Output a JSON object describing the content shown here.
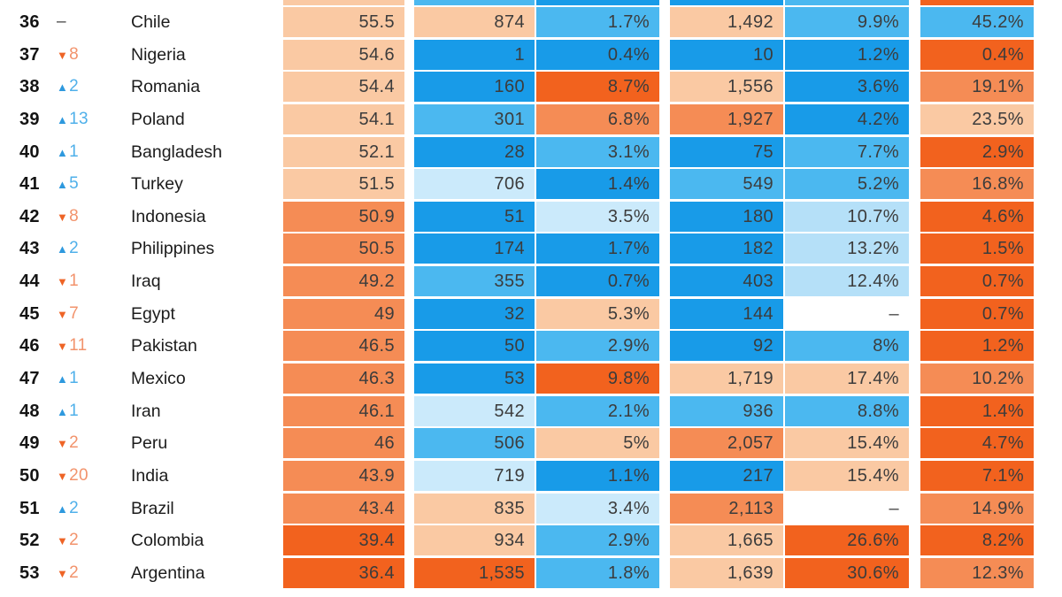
{
  "meta": {
    "glyphs": {
      "up": "▲",
      "down": "▼"
    }
  },
  "colors": {
    "background": "#ffffff",
    "cell_text": "#3c3c3c",
    "rank_text": "#141414",
    "country_text": "#1c1c1c",
    "dash_text": "#4a4a4a",
    "up_arrow": "#2e99de",
    "up_number": "#4fb0ea",
    "down_arrow": "#ee6426",
    "down_number": "#f2936c",
    "palette": {
      "o1": "#f2621e",
      "o2": "#f58c55",
      "o3": "#fac9a3",
      "b1": "#189be8",
      "b2": "#4bb8f0",
      "b3": "#b5e0f8",
      "b4": "#cbeafb",
      "w": "#ffffff"
    }
  },
  "chart_data": {
    "type": "heatmap",
    "description_visible_headers": "",
    "partial_top_row": {
      "colors": [
        "o3",
        "b2",
        "b1",
        "b1",
        "b2",
        "o1"
      ]
    },
    "rows": [
      {
        "rank": "36",
        "change_dir": "none",
        "change": "–",
        "country": "Chile",
        "values": [
          {
            "v": "55.5",
            "c": "o3"
          },
          {
            "v": "874",
            "c": "o3"
          },
          {
            "v": "1.7%",
            "c": "b2"
          },
          {
            "v": "1,492",
            "c": "o3"
          },
          {
            "v": "9.9%",
            "c": "b2"
          },
          {
            "v": "45.2%",
            "c": "b2"
          }
        ]
      },
      {
        "rank": "37",
        "change_dir": "down",
        "change": "8",
        "country": "Nigeria",
        "values": [
          {
            "v": "54.6",
            "c": "o3"
          },
          {
            "v": "1",
            "c": "b1"
          },
          {
            "v": "0.4%",
            "c": "b1"
          },
          {
            "v": "10",
            "c": "b1"
          },
          {
            "v": "1.2%",
            "c": "b1"
          },
          {
            "v": "0.4%",
            "c": "o1"
          }
        ]
      },
      {
        "rank": "38",
        "change_dir": "up",
        "change": "2",
        "country": "Romania",
        "values": [
          {
            "v": "54.4",
            "c": "o3"
          },
          {
            "v": "160",
            "c": "b1"
          },
          {
            "v": "8.7%",
            "c": "o1"
          },
          {
            "v": "1,556",
            "c": "o3"
          },
          {
            "v": "3.6%",
            "c": "b1"
          },
          {
            "v": "19.1%",
            "c": "o2"
          }
        ]
      },
      {
        "rank": "39",
        "change_dir": "up",
        "change": "13",
        "country": "Poland",
        "values": [
          {
            "v": "54.1",
            "c": "o3"
          },
          {
            "v": "301",
            "c": "b2"
          },
          {
            "v": "6.8%",
            "c": "o2"
          },
          {
            "v": "1,927",
            "c": "o2"
          },
          {
            "v": "4.2%",
            "c": "b1"
          },
          {
            "v": "23.5%",
            "c": "o3"
          }
        ]
      },
      {
        "rank": "40",
        "change_dir": "up",
        "change": "1",
        "country": "Bangladesh",
        "values": [
          {
            "v": "52.1",
            "c": "o3"
          },
          {
            "v": "28",
            "c": "b1"
          },
          {
            "v": "3.1%",
            "c": "b2"
          },
          {
            "v": "75",
            "c": "b1"
          },
          {
            "v": "7.7%",
            "c": "b2"
          },
          {
            "v": "2.9%",
            "c": "o1"
          }
        ]
      },
      {
        "rank": "41",
        "change_dir": "up",
        "change": "5",
        "country": "Turkey",
        "values": [
          {
            "v": "51.5",
            "c": "o3"
          },
          {
            "v": "706",
            "c": "b4"
          },
          {
            "v": "1.4%",
            "c": "b1"
          },
          {
            "v": "549",
            "c": "b2"
          },
          {
            "v": "5.2%",
            "c": "b2"
          },
          {
            "v": "16.8%",
            "c": "o2"
          }
        ]
      },
      {
        "rank": "42",
        "change_dir": "down",
        "change": "8",
        "country": "Indonesia",
        "values": [
          {
            "v": "50.9",
            "c": "o2"
          },
          {
            "v": "51",
            "c": "b1"
          },
          {
            "v": "3.5%",
            "c": "b4"
          },
          {
            "v": "180",
            "c": "b1"
          },
          {
            "v": "10.7%",
            "c": "b3"
          },
          {
            "v": "4.6%",
            "c": "o1"
          }
        ]
      },
      {
        "rank": "43",
        "change_dir": "up",
        "change": "2",
        "country": "Philippines",
        "values": [
          {
            "v": "50.5",
            "c": "o2"
          },
          {
            "v": "174",
            "c": "b1"
          },
          {
            "v": "1.7%",
            "c": "b1"
          },
          {
            "v": "182",
            "c": "b1"
          },
          {
            "v": "13.2%",
            "c": "b3"
          },
          {
            "v": "1.5%",
            "c": "o1"
          }
        ]
      },
      {
        "rank": "44",
        "change_dir": "down",
        "change": "1",
        "country": "Iraq",
        "values": [
          {
            "v": "49.2",
            "c": "o2"
          },
          {
            "v": "355",
            "c": "b2"
          },
          {
            "v": "0.7%",
            "c": "b1"
          },
          {
            "v": "403",
            "c": "b1"
          },
          {
            "v": "12.4%",
            "c": "b3"
          },
          {
            "v": "0.7%",
            "c": "o1"
          }
        ]
      },
      {
        "rank": "45",
        "change_dir": "down",
        "change": "7",
        "country": "Egypt",
        "values": [
          {
            "v": "49",
            "c": "o2"
          },
          {
            "v": "32",
            "c": "b1"
          },
          {
            "v": "5.3%",
            "c": "o3"
          },
          {
            "v": "144",
            "c": "b1"
          },
          {
            "v": "–",
            "c": "w"
          },
          {
            "v": "0.7%",
            "c": "o1"
          }
        ]
      },
      {
        "rank": "46",
        "change_dir": "down",
        "change": "11",
        "country": "Pakistan",
        "values": [
          {
            "v": "46.5",
            "c": "o2"
          },
          {
            "v": "50",
            "c": "b1"
          },
          {
            "v": "2.9%",
            "c": "b2"
          },
          {
            "v": "92",
            "c": "b1"
          },
          {
            "v": "8%",
            "c": "b2"
          },
          {
            "v": "1.2%",
            "c": "o1"
          }
        ]
      },
      {
        "rank": "47",
        "change_dir": "up",
        "change": "1",
        "country": "Mexico",
        "values": [
          {
            "v": "46.3",
            "c": "o2"
          },
          {
            "v": "53",
            "c": "b1"
          },
          {
            "v": "9.8%",
            "c": "o1"
          },
          {
            "v": "1,719",
            "c": "o3"
          },
          {
            "v": "17.4%",
            "c": "o3"
          },
          {
            "v": "10.2%",
            "c": "o2"
          }
        ]
      },
      {
        "rank": "48",
        "change_dir": "up",
        "change": "1",
        "country": "Iran",
        "values": [
          {
            "v": "46.1",
            "c": "o2"
          },
          {
            "v": "542",
            "c": "b4"
          },
          {
            "v": "2.1%",
            "c": "b2"
          },
          {
            "v": "936",
            "c": "b2"
          },
          {
            "v": "8.8%",
            "c": "b2"
          },
          {
            "v": "1.4%",
            "c": "o1"
          }
        ]
      },
      {
        "rank": "49",
        "change_dir": "down",
        "change": "2",
        "country": "Peru",
        "values": [
          {
            "v": "46",
            "c": "o2"
          },
          {
            "v": "506",
            "c": "b2"
          },
          {
            "v": "5%",
            "c": "o3"
          },
          {
            "v": "2,057",
            "c": "o2"
          },
          {
            "v": "15.4%",
            "c": "o3"
          },
          {
            "v": "4.7%",
            "c": "o1"
          }
        ]
      },
      {
        "rank": "50",
        "change_dir": "down",
        "change": "20",
        "country": "India",
        "values": [
          {
            "v": "43.9",
            "c": "o2"
          },
          {
            "v": "719",
            "c": "b4"
          },
          {
            "v": "1.1%",
            "c": "b1"
          },
          {
            "v": "217",
            "c": "b1"
          },
          {
            "v": "15.4%",
            "c": "o3"
          },
          {
            "v": "7.1%",
            "c": "o1"
          }
        ]
      },
      {
        "rank": "51",
        "change_dir": "up",
        "change": "2",
        "country": "Brazil",
        "values": [
          {
            "v": "43.4",
            "c": "o2"
          },
          {
            "v": "835",
            "c": "o3"
          },
          {
            "v": "3.4%",
            "c": "b4"
          },
          {
            "v": "2,113",
            "c": "o2"
          },
          {
            "v": "–",
            "c": "w"
          },
          {
            "v": "14.9%",
            "c": "o2"
          }
        ]
      },
      {
        "rank": "52",
        "change_dir": "down",
        "change": "2",
        "country": "Colombia",
        "values": [
          {
            "v": "39.4",
            "c": "o1"
          },
          {
            "v": "934",
            "c": "o3"
          },
          {
            "v": "2.9%",
            "c": "b2"
          },
          {
            "v": "1,665",
            "c": "o3"
          },
          {
            "v": "26.6%",
            "c": "o1"
          },
          {
            "v": "8.2%",
            "c": "o1"
          }
        ]
      },
      {
        "rank": "53",
        "change_dir": "down",
        "change": "2",
        "country": "Argentina",
        "values": [
          {
            "v": "36.4",
            "c": "o1"
          },
          {
            "v": "1,535",
            "c": "o1"
          },
          {
            "v": "1.8%",
            "c": "b2"
          },
          {
            "v": "1,639",
            "c": "o3"
          },
          {
            "v": "30.6%",
            "c": "o1"
          },
          {
            "v": "12.3%",
            "c": "o2"
          }
        ]
      }
    ]
  }
}
